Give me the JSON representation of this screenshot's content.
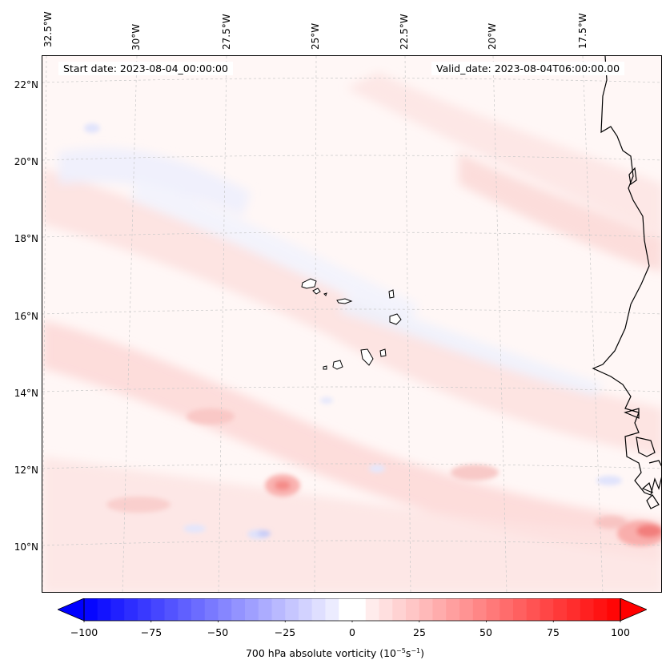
{
  "header": {
    "start_date": "Start date: 2023-08-04_00:00:00",
    "valid_date": "Valid_date: 2023-08-04T06:00:00.00"
  },
  "axes": {
    "longitude_labels": [
      "32.5°W",
      "30°W",
      "27.5°W",
      "25°W",
      "22.5°W",
      "20°W",
      "17.5°W"
    ],
    "latitude_labels": [
      "22°N",
      "20°N",
      "18°N",
      "16°N",
      "14°N",
      "12°N",
      "10°N"
    ]
  },
  "colorbar": {
    "label_prefix": "700 hPa absolute vorticity (10",
    "label_exp1": "−5",
    "label_mid": "s",
    "label_exp2": "−1",
    "label_suffix": ")",
    "ticks": [
      "−100",
      "−75",
      "−50",
      "−25",
      "0",
      "25",
      "50",
      "75",
      "100"
    ],
    "min": -100,
    "max": 100,
    "colors": {
      "negative": "#0000ff",
      "zero": "#ffffff",
      "positive": "#ff0000"
    }
  },
  "map": {
    "background_color": "#fff7f6",
    "coastline_color": "#000000",
    "gridline_color": "#c8c8c8"
  }
}
